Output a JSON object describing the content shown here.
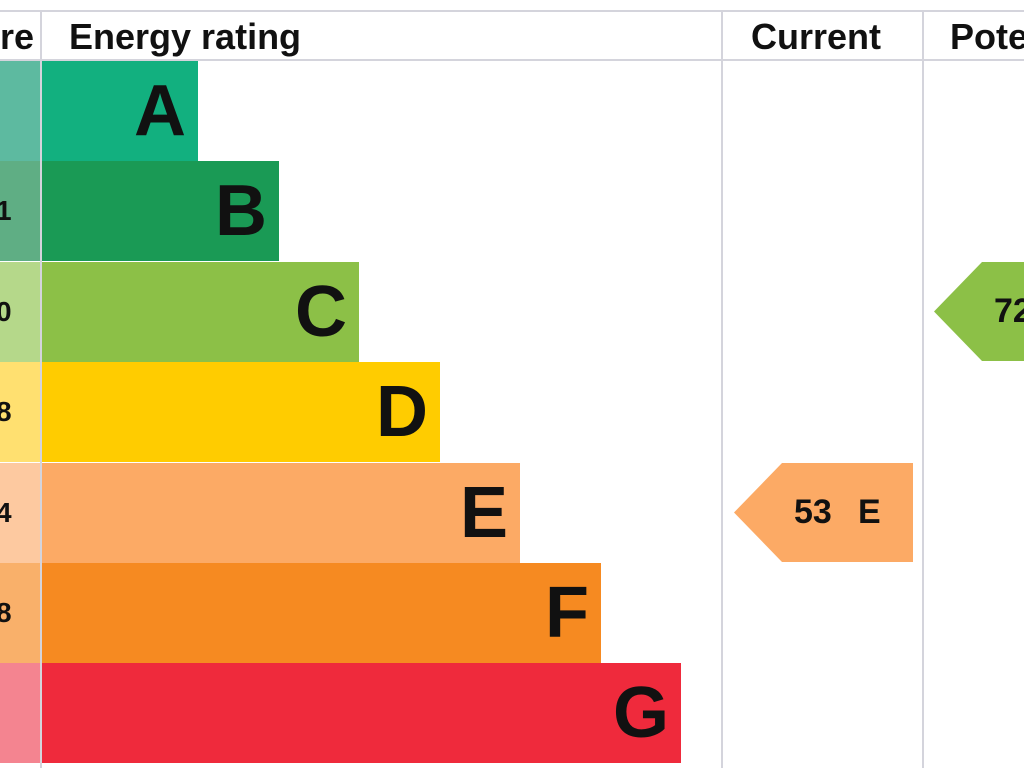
{
  "header": {
    "score": "re",
    "energy_rating": "Energy rating",
    "current": "Current",
    "potential": "Pote"
  },
  "bands": [
    {
      "letter": "A",
      "score": null,
      "color": "#12b07f",
      "score_color": "#5dbaa0"
    },
    {
      "letter": "B",
      "score": "1",
      "color": "#1a9a55",
      "score_color": "#5fae84"
    },
    {
      "letter": "C",
      "score": "0",
      "color": "#8cc047",
      "score_color": "#b5d88a"
    },
    {
      "letter": "D",
      "score": "8",
      "color": "#ffcc00",
      "score_color": "#ffe070"
    },
    {
      "letter": "E",
      "score": "4",
      "color": "#fcaa65",
      "score_color": "#fdc9a0"
    },
    {
      "letter": "F",
      "score": "8",
      "color": "#f68a21",
      "score_color": "#f9b06a"
    },
    {
      "letter": "G",
      "score": null,
      "color": "#ef2a3c",
      "score_color": "#f48490"
    }
  ],
  "current": {
    "value": "53",
    "letter": "E"
  },
  "potential": {
    "value": "72"
  }
}
